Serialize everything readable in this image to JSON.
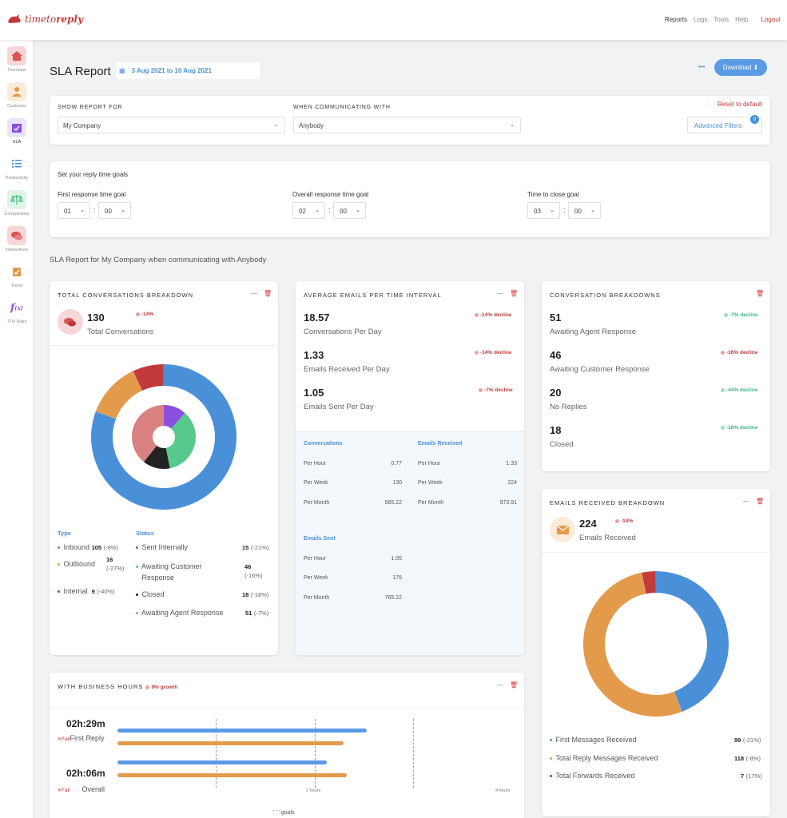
{
  "app": {
    "logo_prefix": "timeto",
    "logo_suffix": "reply"
  },
  "nav": {
    "reports": "Reports",
    "logs": "Logs",
    "tools": "Tools",
    "help": "Help",
    "logout": "Logout"
  },
  "sidebar": {
    "items": [
      {
        "label": "Overview",
        "icon": "home-icon"
      },
      {
        "label": "Customer",
        "icon": "user-icon"
      },
      {
        "label": "SLA",
        "icon": "calendar-check-icon"
      },
      {
        "label": "Productivity",
        "icon": "checklist-icon"
      },
      {
        "label": "Comparative",
        "icon": "scales-icon"
      },
      {
        "label": "Interactions",
        "icon": "chat-icon"
      },
      {
        "label": "Trend",
        "icon": "clipboard-icon"
      },
      {
        "label": "TTR Ratio",
        "icon": "function-icon"
      }
    ]
  },
  "header": {
    "title": "SLA Report",
    "date_range": "3 Aug 2021 to 10 Aug 2021",
    "more": "•••",
    "download": "Download ⬇"
  },
  "filters": {
    "show_label": "SHOW REPORT FOR",
    "show_value": "My Company",
    "comm_label": "WHEN COMMUNICATING WITH",
    "comm_value": "Anybody",
    "reset": "Reset to default",
    "advanced": "Advanced Filters",
    "advanced_badge": "0"
  },
  "goals": {
    "title": "Set your reply time goals",
    "first": {
      "label": "First response time goal",
      "h": "01",
      "m": "00"
    },
    "overall": {
      "label": "Overall response time goal",
      "h": "02",
      "m": "00"
    },
    "close": {
      "label": "Time to close goal",
      "h": "03",
      "m": "00"
    }
  },
  "report_caption": "SLA Report for My Company when communicating with Anybody",
  "total_breakdown": {
    "title": "TOTAL CONVERSATIONS BREAKDOWN",
    "count": "130",
    "change": "-14%",
    "label": "Total Conversations",
    "type_head": "Type",
    "status_head": "Status",
    "types": [
      {
        "label": "Inbound",
        "value": "105",
        "pct": "(-8%)",
        "color": "#4a90d9"
      },
      {
        "label": "Outbound",
        "value": "16",
        "pct": "(-27%)",
        "color": "#e39a4a"
      },
      {
        "label": "Internal",
        "value": "9",
        "pct": "(-40%)",
        "color": "#c23a3a"
      }
    ],
    "statuses": [
      {
        "label": "Sent Internally",
        "value": "15",
        "pct": "(-21%)",
        "color": "#8c4fe0"
      },
      {
        "label": "Awaiting Customer Response",
        "value": "46",
        "pct": "(-16%)",
        "color": "#58c98c"
      },
      {
        "label": "Closed",
        "value": "18",
        "pct": "(-18%)",
        "color": "#222222"
      },
      {
        "label": "Awaiting Agent Response",
        "value": "51",
        "pct": "(-7%)",
        "color": "#d98080"
      }
    ]
  },
  "avg_emails": {
    "title": "AVERAGE EMAILS PER TIME INTERVAL",
    "metrics": [
      {
        "value": "18.57",
        "label": "Conversations Per Day",
        "change": "-14% decline"
      },
      {
        "value": "1.33",
        "label": "Emails Received Per Day",
        "change": "-14% decline"
      },
      {
        "value": "1.05",
        "label": "Emails Sent Per Day",
        "change": "-7% decline"
      }
    ],
    "conversations": {
      "head": "Conversations",
      "rows": [
        [
          "Per Hour",
          "0.77"
        ],
        [
          "Per Week",
          "130"
        ],
        [
          "Per Month",
          "565.22"
        ]
      ]
    },
    "received": {
      "head": "Emails Received",
      "rows": [
        [
          "Per Hour",
          "1.33"
        ],
        [
          "Per Week",
          "224"
        ],
        [
          "Per Month",
          "973.91"
        ]
      ]
    },
    "sent": {
      "head": "Emails Sent",
      "rows": [
        [
          "Per Hour",
          "1.05"
        ],
        [
          "Per Week",
          "176"
        ],
        [
          "Per Month",
          "765.22"
        ]
      ]
    }
  },
  "conv_breakdowns": {
    "title": "CONVERSATION BREAKDOWNS",
    "items": [
      {
        "value": "51",
        "label": "Awaiting Agent Response",
        "change": "-7% decline",
        "tone": "green"
      },
      {
        "value": "46",
        "label": "Awaiting Customer Response",
        "change": "-16% decline",
        "tone": "red"
      },
      {
        "value": "20",
        "label": "No Replies",
        "change": "-44% decline",
        "tone": "green"
      },
      {
        "value": "18",
        "label": "Closed",
        "change": "-18% decline",
        "tone": "green"
      }
    ]
  },
  "emails_received": {
    "title": "EMAILS RECEIVED BREAKDOWN",
    "count": "224",
    "change": "-14%",
    "label": "Emails Received",
    "items": [
      {
        "label": "First Messages Received",
        "value": "99",
        "pct": "(-21%)",
        "color": "#4a90d9"
      },
      {
        "label": "Total Reply Messages Received",
        "value": "118",
        "pct": "(-8%)",
        "color": "#e39a4a"
      },
      {
        "label": "Total Forwards Received",
        "value": "7",
        "pct": "(17%)",
        "color": "#c23a3a"
      }
    ]
  },
  "business_hours": {
    "title": "WITH BUSINESS HOURS",
    "growth": "9% growth",
    "rows": [
      {
        "time": "02h:29m",
        "status": "Fail",
        "label": "First Reply",
        "actual": 0.76,
        "goal_bar": 0.69
      },
      {
        "time": "02h:06m",
        "status": "Fail",
        "label": "Overall",
        "actual": 0.64,
        "goal_bar": 0.7
      }
    ],
    "ticks": [
      "2 hours",
      "4 hours"
    ],
    "legend": "goals"
  },
  "chart_data": [
    {
      "type": "pie",
      "title": "TOTAL CONVERSATIONS BREAKDOWN",
      "series": [
        {
          "name": "Type",
          "categories": [
            "Inbound",
            "Outbound",
            "Internal"
          ],
          "values": [
            105,
            16,
            9
          ]
        },
        {
          "name": "Status",
          "categories": [
            "Sent Internally",
            "Awaiting Customer Response",
            "Closed",
            "Awaiting Agent Response"
          ],
          "values": [
            15,
            46,
            18,
            51
          ]
        }
      ]
    },
    {
      "type": "pie",
      "title": "EMAILS RECEIVED BREAKDOWN",
      "categories": [
        "First Messages Received",
        "Total Reply Messages Received",
        "Total Forwards Received"
      ],
      "values": [
        99,
        118,
        7
      ]
    }
  ],
  "colors": {
    "accent": "#4a90d9",
    "brand": "#c23a3a",
    "orange": "#e39a4a",
    "green": "#3db97e"
  }
}
